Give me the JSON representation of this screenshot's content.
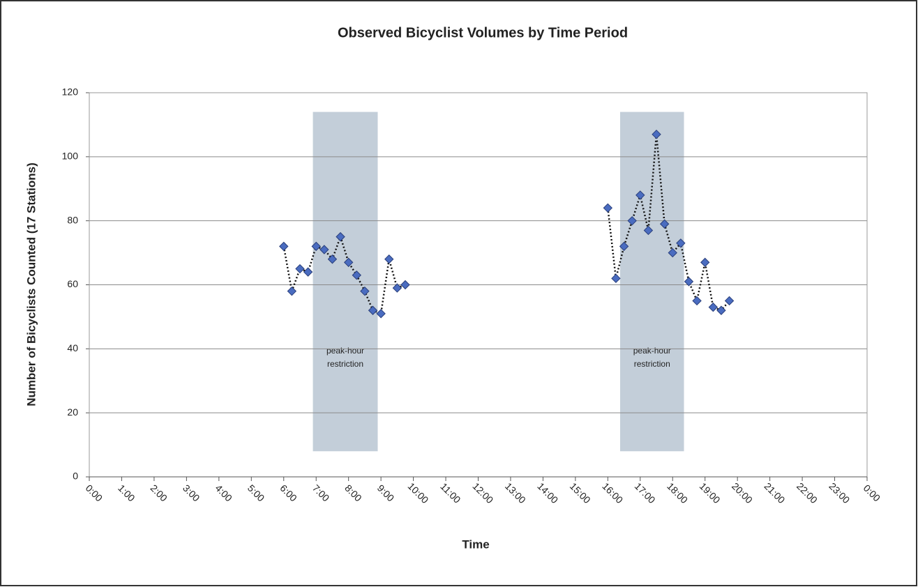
{
  "chart_data": {
    "type": "line",
    "title": "Observed Bicyclist Volumes by Time Period",
    "xlabel": "Time",
    "ylabel": "Number of Bicyclists Counted (17 Stations)",
    "xlim": [
      0,
      24
    ],
    "xticks": [
      {
        "value": 0,
        "label": "0:00"
      },
      {
        "value": 1,
        "label": "1:00"
      },
      {
        "value": 2,
        "label": "2:00"
      },
      {
        "value": 3,
        "label": "3:00"
      },
      {
        "value": 4,
        "label": "4:00"
      },
      {
        "value": 5,
        "label": "5:00"
      },
      {
        "value": 6,
        "label": "6:00"
      },
      {
        "value": 7,
        "label": "7:00"
      },
      {
        "value": 8,
        "label": "8:00"
      },
      {
        "value": 9,
        "label": "9:00"
      },
      {
        "value": 10,
        "label": "10:00"
      },
      {
        "value": 11,
        "label": "11:00"
      },
      {
        "value": 12,
        "label": "12:00"
      },
      {
        "value": 13,
        "label": "13:00"
      },
      {
        "value": 14,
        "label": "14:00"
      },
      {
        "value": 15,
        "label": "15:00"
      },
      {
        "value": 16,
        "label": "16:00"
      },
      {
        "value": 17,
        "label": "17:00"
      },
      {
        "value": 18,
        "label": "18:00"
      },
      {
        "value": 19,
        "label": "19:00"
      },
      {
        "value": 20,
        "label": "20:00"
      },
      {
        "value": 21,
        "label": "21:00"
      },
      {
        "value": 22,
        "label": "22:00"
      },
      {
        "value": 23,
        "label": "23:00"
      },
      {
        "value": 24,
        "label": "0:00"
      }
    ],
    "ylim": [
      0,
      120
    ],
    "yticks": [
      0,
      20,
      40,
      60,
      80,
      100,
      120
    ],
    "grid": true,
    "series": [
      {
        "color": "#4a6cc0",
        "x": [
          6,
          6.25,
          6.5,
          6.75,
          7,
          7.25,
          7.5,
          7.75,
          8,
          8.25,
          8.5,
          8.75,
          9,
          9.25,
          9.5,
          9.75
        ],
        "values": [
          72,
          58,
          65,
          64,
          72,
          71,
          68,
          75,
          67,
          63,
          58,
          52,
          51,
          68,
          59,
          60
        ]
      },
      {
        "color": "#4a6cc0",
        "x": [
          16,
          16.25,
          16.5,
          16.75,
          17,
          17.25,
          17.5,
          17.75,
          18,
          18.25,
          18.5,
          18.75,
          19,
          19.25,
          19.5,
          19.75
        ],
        "values": [
          84,
          62,
          72,
          80,
          88,
          77,
          107,
          79,
          70,
          73,
          61,
          55,
          67,
          53,
          52,
          55
        ]
      }
    ],
    "shaded_regions": [
      {
        "x": [
          6.9,
          8.9
        ],
        "y": [
          8,
          114
        ],
        "label": [
          "peak-hour",
          "restriction"
        ],
        "color": "#c3ced9"
      },
      {
        "x": [
          16.38,
          18.35
        ],
        "y": [
          8,
          114
        ],
        "label": [
          "peak-hour",
          "restriction"
        ],
        "color": "#c3ced9"
      }
    ]
  }
}
